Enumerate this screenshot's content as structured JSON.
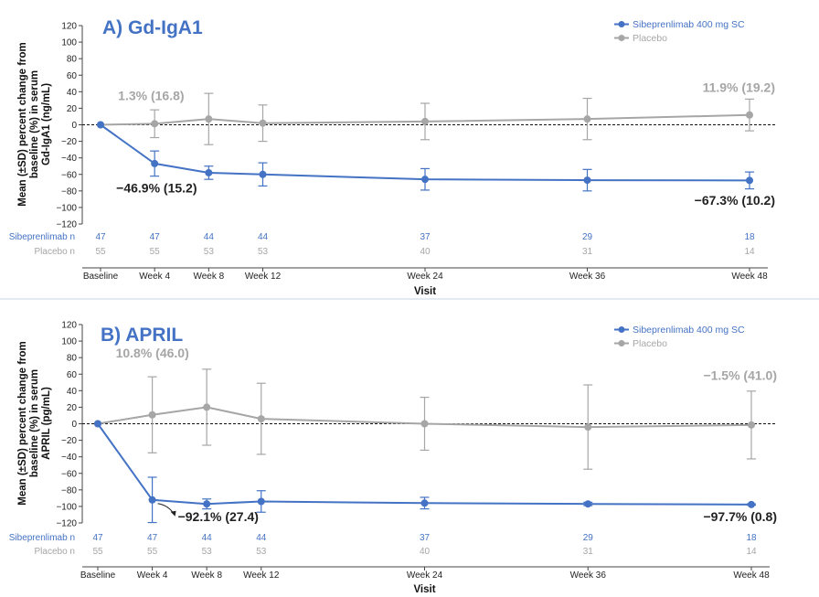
{
  "colors": {
    "sib": "#4472c4",
    "placebo": "#a6a6a6",
    "title": "#4472c4",
    "ann_dark": "#222222",
    "ann_gray": "#a6a6a6"
  },
  "chart_data": [
    {
      "type": "line",
      "title": "A) Gd-IgA1",
      "ylabel": "Mean (±SD) percent change from baseline (%) in serum Gd-IgA1 (ng/mL)",
      "ylabel_lines": [
        "Mean (±SD) percent change from",
        "baseline (%) in serum",
        "Gd-IgA1 (ng/mL)"
      ],
      "xlabel": "Visit",
      "ylim": [
        -120,
        120
      ],
      "yticks": [
        120,
        100,
        80,
        60,
        40,
        20,
        0,
        -20,
        -40,
        -60,
        -80,
        -100,
        -120
      ],
      "ytick_labels": [
        "120",
        "100",
        "80",
        "60",
        "40",
        "20",
        "0",
        "−20",
        "−40",
        "−60",
        "−80",
        "−100",
        "−120"
      ],
      "categories": [
        "Baseline",
        "Week 4",
        "Week 8",
        "Week 12",
        "Week 24",
        "Week 36",
        "Week 48"
      ],
      "x": [
        0,
        4,
        8,
        12,
        24,
        36,
        48
      ],
      "legend": "top-right",
      "series": [
        {
          "name": "Sibeprenlimab 400 mg SC",
          "color_key": "sib",
          "values": [
            0,
            -46.9,
            -58,
            -60,
            -66,
            -67,
            -67.3
          ],
          "sd": [
            0,
            15.2,
            8,
            14,
            13,
            13,
            10.2
          ],
          "n_label": "Sibeprenlimab n",
          "n": [
            "47",
            "47",
            "44",
            "44",
            "37",
            "29",
            "18"
          ]
        },
        {
          "name": "Placebo",
          "color_key": "placebo",
          "values": [
            0,
            1.3,
            7,
            2,
            4,
            7,
            11.9
          ],
          "sd": [
            0,
            16.8,
            31,
            22,
            22,
            25,
            19.2
          ],
          "n_label": "Placebo n",
          "n": [
            "55",
            "55",
            "53",
            "53",
            "40",
            "31",
            "14"
          ]
        }
      ],
      "annotations": [
        {
          "text": "1.3% (16.8)",
          "color_key": "ann_gray",
          "x": 4,
          "y": 30
        },
        {
          "text": "11.9% (19.2)",
          "color_key": "ann_gray",
          "x": 48,
          "y": 40
        },
        {
          "text": "−46.9% (15.2)",
          "color_key": "ann_dark",
          "x": 4,
          "y": -82
        },
        {
          "text": "−67.3% (10.2)",
          "color_key": "ann_dark",
          "x": 48,
          "y": -97
        }
      ]
    },
    {
      "type": "line",
      "title": "B) APRIL",
      "ylabel": "Mean (±SD) percent change from baseline (%) in serum APRIL (pg/mL)",
      "ylabel_lines": [
        "Mean (±SD) percent change from",
        "baseline (%) in serum",
        "APRIL (pg/mL)"
      ],
      "xlabel": "Visit",
      "ylim": [
        -120,
        120
      ],
      "yticks": [
        120,
        100,
        80,
        60,
        40,
        20,
        0,
        -20,
        -40,
        -60,
        -80,
        -100,
        -120
      ],
      "ytick_labels": [
        "120",
        "100",
        "80",
        "60",
        "40",
        "20",
        "0",
        "−20",
        "−40",
        "−60",
        "−80",
        "−100",
        "−120"
      ],
      "categories": [
        "Baseline",
        "Week 4",
        "Week 8",
        "Week 12",
        "Week 24",
        "Week 36",
        "Week 48"
      ],
      "x": [
        0,
        4,
        8,
        12,
        24,
        36,
        48
      ],
      "legend": "top-right",
      "series": [
        {
          "name": "Sibeprenlimab 400 mg SC",
          "color_key": "sib",
          "values": [
            0,
            -92.1,
            -97,
            -94,
            -96,
            -97,
            -97.7
          ],
          "sd": [
            0,
            27.4,
            6,
            13,
            7,
            2,
            0.8
          ],
          "n_label": "Sibeprenlimab n",
          "n": [
            "47",
            "47",
            "44",
            "44",
            "37",
            "29",
            "18"
          ]
        },
        {
          "name": "Placebo",
          "color_key": "placebo",
          "values": [
            0,
            10.8,
            20,
            6,
            0,
            -4,
            -1.5
          ],
          "sd": [
            0,
            46.0,
            46,
            43,
            32,
            51,
            41.0
          ],
          "n_label": "Placebo n",
          "n": [
            "55",
            "55",
            "53",
            "53",
            "40",
            "31",
            "14"
          ]
        }
      ],
      "annotations": [
        {
          "text": "10.8% (46.0)",
          "color_key": "ann_gray",
          "x": 4,
          "y": 80
        },
        {
          "text": "−1.5% (41.0)",
          "color_key": "ann_gray",
          "x": 48,
          "y": 53
        },
        {
          "text": "−92.1% (27.4)",
          "color_key": "ann_dark",
          "x": 4,
          "y": -118
        },
        {
          "text": "−97.7% (0.8)",
          "color_key": "ann_dark",
          "x": 48,
          "y": -118
        }
      ]
    }
  ]
}
